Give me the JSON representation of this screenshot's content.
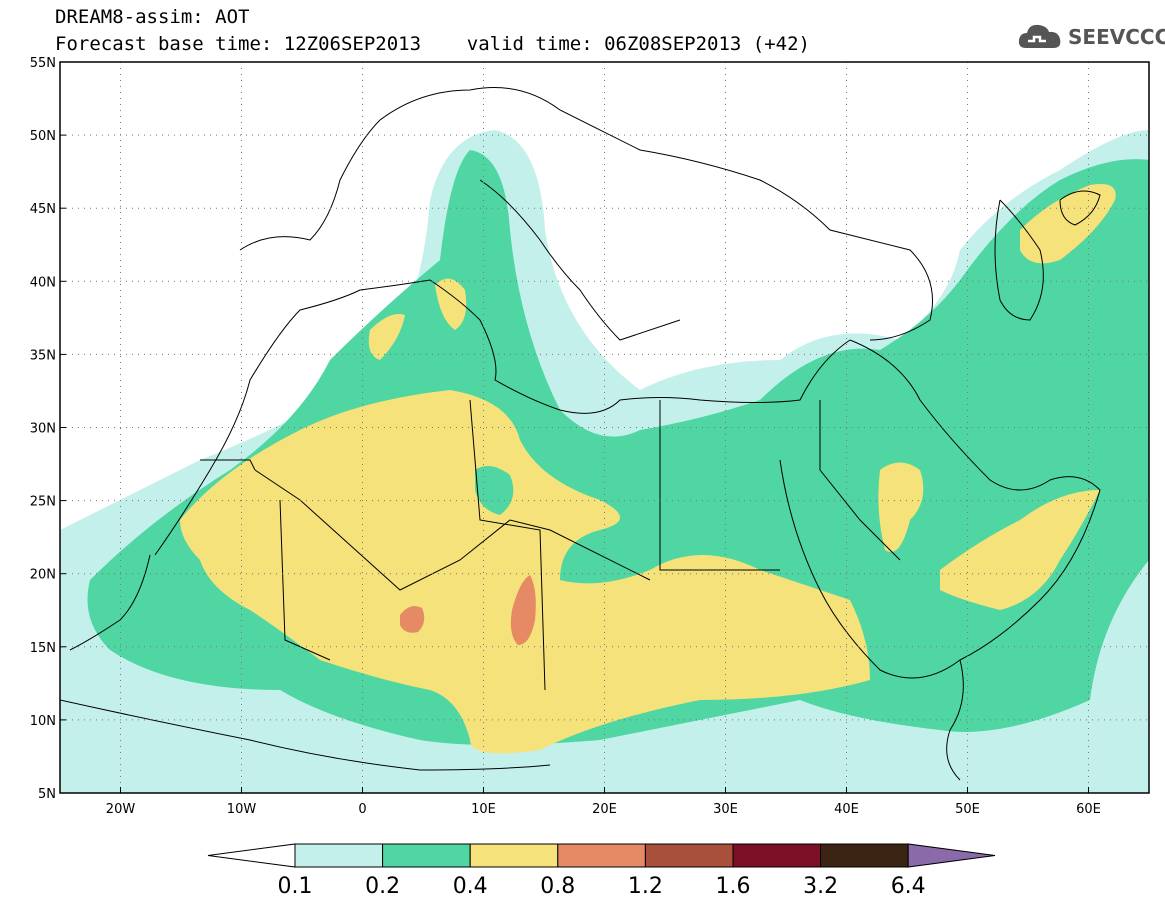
{
  "header": {
    "line1": "DREAM8-assim: AOT",
    "line2": "Forecast base time: 12Z06SEP2013    valid time: 06Z08SEP2013 (+42)"
  },
  "logo": {
    "text": "SEEVCCC",
    "icon": "cloud-icon"
  },
  "map": {
    "lon_range": [
      -25,
      65
    ],
    "lat_range": [
      5,
      55
    ],
    "lat_ticks": [
      {
        "value": 55,
        "label": "55N"
      },
      {
        "value": 50,
        "label": "50N"
      },
      {
        "value": 45,
        "label": "45N"
      },
      {
        "value": 40,
        "label": "40N"
      },
      {
        "value": 35,
        "label": "35N"
      },
      {
        "value": 30,
        "label": "30N"
      },
      {
        "value": 25,
        "label": "25N"
      },
      {
        "value": 20,
        "label": "20N"
      },
      {
        "value": 15,
        "label": "15N"
      },
      {
        "value": 10,
        "label": "10N"
      },
      {
        "value": 5,
        "label": "5N"
      }
    ],
    "lon_ticks": [
      {
        "value": -20,
        "label": "20W"
      },
      {
        "value": -10,
        "label": "10W"
      },
      {
        "value": 0,
        "label": "0"
      },
      {
        "value": 10,
        "label": "10E"
      },
      {
        "value": 20,
        "label": "20E"
      },
      {
        "value": 30,
        "label": "30E"
      },
      {
        "value": 40,
        "label": "40E"
      },
      {
        "value": 50,
        "label": "50E"
      },
      {
        "value": 60,
        "label": "60E"
      }
    ],
    "grid": "dotted"
  },
  "colorbar": {
    "levels": [
      "0.1",
      "0.2",
      "0.4",
      "0.8",
      "1.2",
      "1.6",
      "3.2",
      "6.4"
    ],
    "colors": [
      "#ffffff",
      "#c4f0ec",
      "#4fd6a2",
      "#f5e27a",
      "#e58a64",
      "#a8503c",
      "#7a0f26",
      "#3c2414",
      "#8a6aa8"
    ]
  }
}
